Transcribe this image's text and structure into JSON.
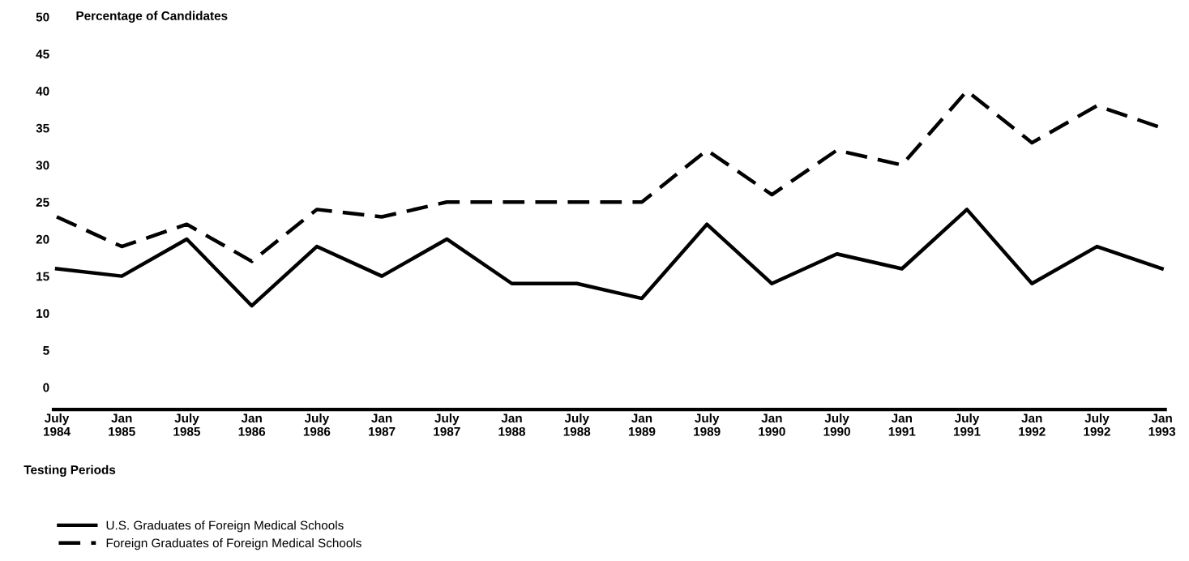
{
  "chart_data": {
    "type": "line",
    "ylabel": "Percentage of Candidates",
    "xlabel": "Testing Periods",
    "categories": [
      "July\n1984",
      "Jan\n1985",
      "July\n1985",
      "Jan\n1986",
      "July\n1986",
      "Jan\n1987",
      "July\n1987",
      "Jan\n1988",
      "July\n1988",
      "Jan\n1989",
      "July\n1989",
      "Jan\n1990",
      "July\n1990",
      "Jan\n1991",
      "July\n1991",
      "Jan\n1992",
      "July\n1992",
      "Jan\n1993"
    ],
    "series": [
      {
        "name": "U.S. Graduates of Foreign Medical Schools",
        "color": "#000000",
        "line_style": "solid",
        "values": [
          16,
          15,
          20,
          11,
          19,
          15,
          20,
          14,
          14,
          12,
          22,
          14,
          18,
          16,
          24,
          14,
          19,
          16
        ]
      },
      {
        "name": "Foreign Graduates of Foreign Medical Schools",
        "color": "#000000",
        "line_style": "dashed",
        "values": [
          23,
          19,
          22,
          17,
          24,
          23,
          25,
          25,
          25,
          25,
          32,
          26,
          32,
          30,
          40,
          33,
          38,
          35
        ]
      }
    ],
    "ylim": [
      -3,
      50
    ],
    "yticks": [
      0,
      5,
      10,
      15,
      20,
      25,
      30,
      35,
      40,
      45,
      50
    ],
    "grid": false,
    "legend": "bottom left",
    "marker": "none"
  }
}
